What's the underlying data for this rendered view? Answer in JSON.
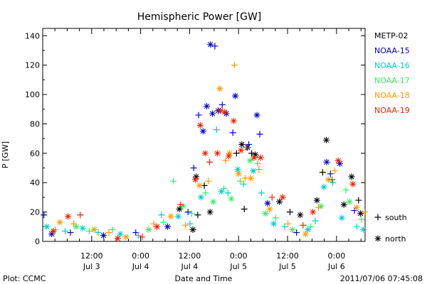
{
  "chart_data": {
    "type": "scatter",
    "title": "Hemispheric Power [GW]",
    "ylabel": "P [GW]",
    "xlabel": "Date and Time",
    "footer_left": "Plot: CCMC",
    "footer_right": "2011/07/06 07:45:08",
    "ylim": [
      0,
      145
    ],
    "yticks": [
      0,
      20,
      40,
      60,
      80,
      100,
      120,
      140
    ],
    "xlim": [
      0,
      79
    ],
    "xticks": [
      {
        "x": 12,
        "time": "12:00",
        "date": "Jul 3"
      },
      {
        "x": 24,
        "time": "0:00",
        "date": "Jul 4"
      },
      {
        "x": 36,
        "time": "12:00",
        "date": "Jul 4"
      },
      {
        "x": 48,
        "time": "0:00",
        "date": "Jul 5"
      },
      {
        "x": 60,
        "time": "12:00",
        "date": "Jul 5"
      },
      {
        "x": 72,
        "time": "0:00",
        "date": "Jul 6"
      }
    ],
    "x_units": "hours since 2011-07-03 00:00",
    "marker_legend": [
      {
        "symbol": "+",
        "label": "south"
      },
      {
        "symbol": "*",
        "label": "north"
      }
    ],
    "series": [
      {
        "name": "METP-02",
        "color": "#000000",
        "points": [
          {
            "x": 33.5,
            "y": 22,
            "m": "*"
          },
          {
            "x": 36.8,
            "y": 8,
            "m": "*"
          },
          {
            "x": 37.6,
            "y": 44,
            "m": "*"
          },
          {
            "x": 38.0,
            "y": 18,
            "m": "+"
          },
          {
            "x": 39.6,
            "y": 38,
            "m": "+"
          },
          {
            "x": 41.0,
            "y": 20,
            "m": "*"
          },
          {
            "x": 47.5,
            "y": 60,
            "m": "+"
          },
          {
            "x": 48.8,
            "y": 66,
            "m": "*"
          },
          {
            "x": 49.4,
            "y": 22,
            "m": "+"
          },
          {
            "x": 50.2,
            "y": 64,
            "m": "*"
          },
          {
            "x": 51.2,
            "y": 60,
            "m": "+"
          },
          {
            "x": 52.1,
            "y": 59,
            "m": "*"
          },
          {
            "x": 58.0,
            "y": 27,
            "m": "*"
          },
          {
            "x": 60.6,
            "y": 20,
            "m": "+"
          },
          {
            "x": 63.1,
            "y": 18,
            "m": "*"
          },
          {
            "x": 67.2,
            "y": 28,
            "m": "*"
          },
          {
            "x": 68.6,
            "y": 47,
            "m": "+"
          },
          {
            "x": 69.5,
            "y": 69,
            "m": "*"
          },
          {
            "x": 73.8,
            "y": 25,
            "m": "*"
          },
          {
            "x": 75.7,
            "y": 44,
            "m": "*"
          },
          {
            "x": 77.4,
            "y": 28,
            "m": "+"
          },
          {
            "x": 77.9,
            "y": 19,
            "m": "*"
          }
        ]
      },
      {
        "name": "NOAA-15",
        "color": "#0000cc",
        "points": [
          {
            "x": 0.3,
            "y": 18,
            "m": "+"
          },
          {
            "x": 2.2,
            "y": 5,
            "m": "*"
          },
          {
            "x": 6.8,
            "y": 6,
            "m": "+"
          },
          {
            "x": 14.9,
            "y": 4,
            "m": "*"
          },
          {
            "x": 22.8,
            "y": 6,
            "m": "+"
          },
          {
            "x": 30.6,
            "y": 10,
            "m": "*"
          },
          {
            "x": 35.6,
            "y": 20,
            "m": "+"
          },
          {
            "x": 37.0,
            "y": 50,
            "m": "+"
          },
          {
            "x": 38.2,
            "y": 86,
            "m": "+"
          },
          {
            "x": 39.3,
            "y": 75,
            "m": "*"
          },
          {
            "x": 40.2,
            "y": 92,
            "m": "*"
          },
          {
            "x": 41.1,
            "y": 134,
            "m": "*"
          },
          {
            "x": 42.2,
            "y": 133,
            "m": "+"
          },
          {
            "x": 41.6,
            "y": 87,
            "m": "*"
          },
          {
            "x": 43.0,
            "y": 89,
            "m": "*"
          },
          {
            "x": 44.0,
            "y": 93,
            "m": "+"
          },
          {
            "x": 45.0,
            "y": 87,
            "m": "*"
          },
          {
            "x": 46.6,
            "y": 74,
            "m": "+"
          },
          {
            "x": 47.2,
            "y": 99,
            "m": "*"
          },
          {
            "x": 50.5,
            "y": 66,
            "m": "+"
          },
          {
            "x": 52.5,
            "y": 86,
            "m": "*"
          },
          {
            "x": 53.2,
            "y": 73,
            "m": "+"
          },
          {
            "x": 55.1,
            "y": 26,
            "m": "*"
          },
          {
            "x": 62.2,
            "y": 6,
            "m": "+"
          },
          {
            "x": 69.6,
            "y": 54,
            "m": "*"
          },
          {
            "x": 70.5,
            "y": 46,
            "m": "+"
          },
          {
            "x": 72.8,
            "y": 53,
            "m": "*"
          },
          {
            "x": 76.4,
            "y": 21,
            "m": "+"
          }
        ]
      },
      {
        "name": "NOAA-16",
        "color": "#00cccc",
        "points": [
          {
            "x": 1.0,
            "y": 10,
            "m": "*"
          },
          {
            "x": 5.5,
            "y": 7,
            "m": "+"
          },
          {
            "x": 9.8,
            "y": 9,
            "m": "*"
          },
          {
            "x": 13.6,
            "y": 6,
            "m": "+"
          },
          {
            "x": 19.0,
            "y": 5,
            "m": "*"
          },
          {
            "x": 23.4,
            "y": 4,
            "m": "+"
          },
          {
            "x": 29.1,
            "y": 18,
            "m": "+"
          },
          {
            "x": 33.2,
            "y": 17,
            "m": "*"
          },
          {
            "x": 36.1,
            "y": 12,
            "m": "+"
          },
          {
            "x": 38.8,
            "y": 30,
            "m": "*"
          },
          {
            "x": 42.6,
            "y": 76,
            "m": "+"
          },
          {
            "x": 43.8,
            "y": 34,
            "m": "*"
          },
          {
            "x": 45.4,
            "y": 33,
            "m": "+"
          },
          {
            "x": 47.8,
            "y": 49,
            "m": "*"
          },
          {
            "x": 49.2,
            "y": 39,
            "m": "+"
          },
          {
            "x": 51.6,
            "y": 48,
            "m": "*"
          },
          {
            "x": 53.6,
            "y": 33,
            "m": "+"
          },
          {
            "x": 56.6,
            "y": 12,
            "m": "*"
          },
          {
            "x": 59.3,
            "y": 10,
            "m": "+"
          },
          {
            "x": 65.0,
            "y": 8,
            "m": "*"
          },
          {
            "x": 66.8,
            "y": 14,
            "m": "+"
          },
          {
            "x": 68.9,
            "y": 37,
            "m": "*"
          },
          {
            "x": 71.1,
            "y": 40,
            "m": "+"
          },
          {
            "x": 73.3,
            "y": 16,
            "m": "*"
          },
          {
            "x": 77.0,
            "y": 10,
            "m": "+"
          },
          {
            "x": 78.6,
            "y": 8,
            "m": "*"
          }
        ]
      },
      {
        "name": "NOAA-17",
        "color": "#33ee66",
        "points": [
          {
            "x": 3.1,
            "y": 8,
            "m": "+"
          },
          {
            "x": 8.2,
            "y": 10,
            "m": "*"
          },
          {
            "x": 11.4,
            "y": 7,
            "m": "+"
          },
          {
            "x": 17.1,
            "y": 8,
            "m": "+"
          },
          {
            "x": 26.0,
            "y": 8,
            "m": "*"
          },
          {
            "x": 29.6,
            "y": 13,
            "m": "+"
          },
          {
            "x": 32.0,
            "y": 41,
            "m": "+"
          },
          {
            "x": 34.4,
            "y": 24,
            "m": "*"
          },
          {
            "x": 36.5,
            "y": 19,
            "m": "+"
          },
          {
            "x": 39.9,
            "y": 33,
            "m": "+"
          },
          {
            "x": 41.8,
            "y": 27,
            "m": "*"
          },
          {
            "x": 44.4,
            "y": 36,
            "m": "+"
          },
          {
            "x": 46.2,
            "y": 29,
            "m": "*"
          },
          {
            "x": 48.4,
            "y": 41,
            "m": "+"
          },
          {
            "x": 50.8,
            "y": 55,
            "m": "*"
          },
          {
            "x": 52.7,
            "y": 53,
            "m": "+"
          },
          {
            "x": 54.6,
            "y": 19,
            "m": "*"
          },
          {
            "x": 57.1,
            "y": 16,
            "m": "+"
          },
          {
            "x": 61.2,
            "y": 8,
            "m": "*"
          },
          {
            "x": 65.7,
            "y": 10,
            "m": "+"
          },
          {
            "x": 68.2,
            "y": 24,
            "m": "*"
          },
          {
            "x": 74.3,
            "y": 35,
            "m": "+"
          },
          {
            "x": 75.2,
            "y": 27,
            "m": "*"
          },
          {
            "x": 78.1,
            "y": 15,
            "m": "+"
          }
        ]
      },
      {
        "name": "NOAA-18",
        "color": "#ff9900",
        "points": [
          {
            "x": 4.2,
            "y": 13,
            "m": "*"
          },
          {
            "x": 7.6,
            "y": 12,
            "m": "+"
          },
          {
            "x": 12.6,
            "y": 8,
            "m": "*"
          },
          {
            "x": 16.2,
            "y": 6,
            "m": "+"
          },
          {
            "x": 20.4,
            "y": 3,
            "m": "*"
          },
          {
            "x": 27.2,
            "y": 12,
            "m": "+"
          },
          {
            "x": 31.4,
            "y": 17,
            "m": "*"
          },
          {
            "x": 35.0,
            "y": 11,
            "m": "+"
          },
          {
            "x": 38.4,
            "y": 38,
            "m": "*"
          },
          {
            "x": 40.6,
            "y": 41,
            "m": "+"
          },
          {
            "x": 43.4,
            "y": 104,
            "m": "*"
          },
          {
            "x": 44.8,
            "y": 55,
            "m": "+"
          },
          {
            "x": 45.8,
            "y": 60,
            "m": "*"
          },
          {
            "x": 47.0,
            "y": 120,
            "m": "+"
          },
          {
            "x": 48.0,
            "y": 46,
            "m": "*"
          },
          {
            "x": 49.6,
            "y": 43,
            "m": "+"
          },
          {
            "x": 51.0,
            "y": 43,
            "m": "*"
          },
          {
            "x": 53.0,
            "y": 49,
            "m": "+"
          },
          {
            "x": 55.6,
            "y": 22,
            "m": "*"
          },
          {
            "x": 60.1,
            "y": 12,
            "m": "+"
          },
          {
            "x": 64.4,
            "y": 5,
            "m": "*"
          },
          {
            "x": 67.6,
            "y": 23,
            "m": "+"
          },
          {
            "x": 70.0,
            "y": 42,
            "m": "*"
          },
          {
            "x": 71.6,
            "y": 48,
            "m": "+"
          },
          {
            "x": 76.9,
            "y": 23,
            "m": "*"
          },
          {
            "x": 78.9,
            "y": 20,
            "m": "+"
          }
        ]
      },
      {
        "name": "NOAA-19",
        "color": "#ee2200",
        "points": [
          {
            "x": 2.6,
            "y": 7,
            "m": "*"
          },
          {
            "x": 6.2,
            "y": 17,
            "m": "*"
          },
          {
            "x": 9.2,
            "y": 18,
            "m": "+"
          },
          {
            "x": 18.4,
            "y": 2,
            "m": "*"
          },
          {
            "x": 24.4,
            "y": 3,
            "m": "+"
          },
          {
            "x": 28.0,
            "y": 10,
            "m": "*"
          },
          {
            "x": 33.8,
            "y": 25,
            "m": "+"
          },
          {
            "x": 37.4,
            "y": 42,
            "m": "*"
          },
          {
            "x": 38.6,
            "y": 79,
            "m": "*"
          },
          {
            "x": 39.8,
            "y": 60,
            "m": "*"
          },
          {
            "x": 40.9,
            "y": 54,
            "m": "+"
          },
          {
            "x": 42.8,
            "y": 60,
            "m": "*"
          },
          {
            "x": 43.6,
            "y": 89,
            "m": "*"
          },
          {
            "x": 44.6,
            "y": 88,
            "m": "*"
          },
          {
            "x": 45.6,
            "y": 58,
            "m": "*"
          },
          {
            "x": 46.8,
            "y": 82,
            "m": "*"
          },
          {
            "x": 48.6,
            "y": 62,
            "m": "*"
          },
          {
            "x": 50.0,
            "y": 64,
            "m": "+"
          },
          {
            "x": 51.8,
            "y": 57,
            "m": "*"
          },
          {
            "x": 53.4,
            "y": 57,
            "m": "*"
          },
          {
            "x": 56.2,
            "y": 30,
            "m": "+"
          },
          {
            "x": 58.8,
            "y": 30,
            "m": "*"
          },
          {
            "x": 63.8,
            "y": 11,
            "m": "+"
          },
          {
            "x": 66.2,
            "y": 20,
            "m": "*"
          },
          {
            "x": 70.9,
            "y": 42,
            "m": "+"
          },
          {
            "x": 72.4,
            "y": 55,
            "m": "*"
          },
          {
            "x": 76.0,
            "y": 39,
            "m": "*"
          }
        ]
      }
    ]
  }
}
